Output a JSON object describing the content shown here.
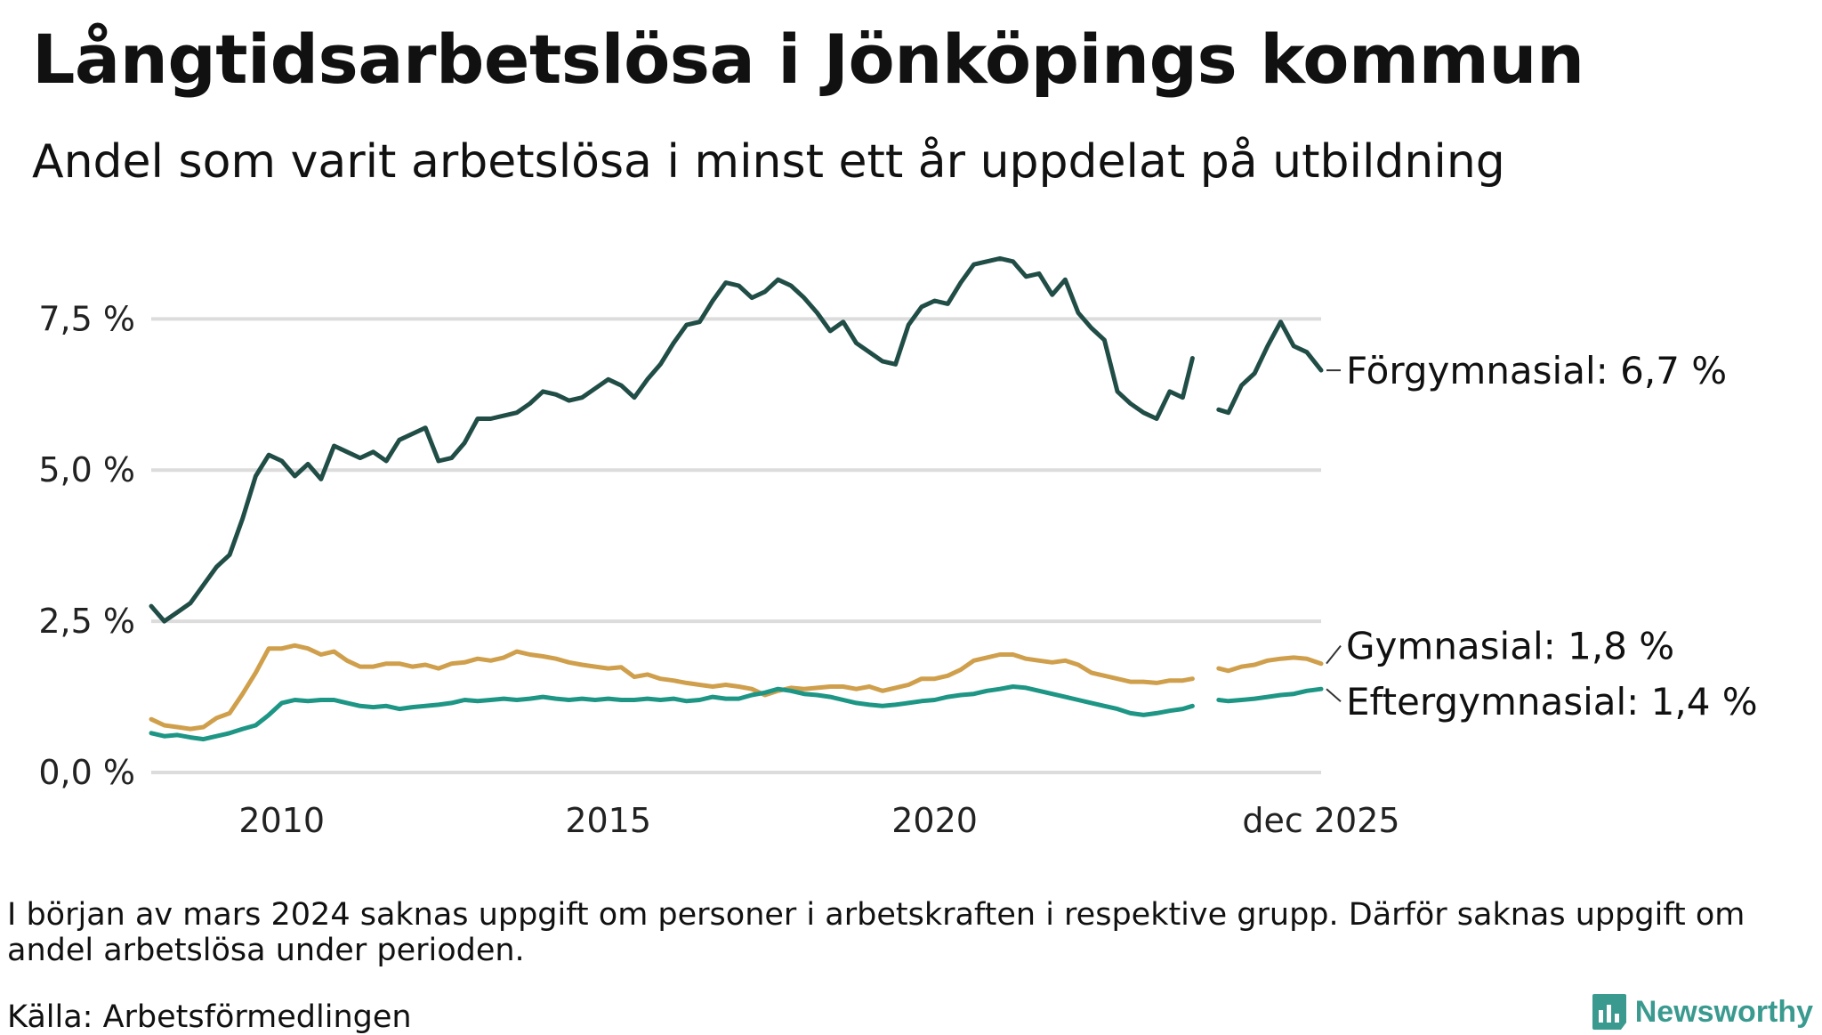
{
  "title": "Långtidsarbetslösa i Jönköpings kommun",
  "subtitle": "Andel som varit arbetslösa i minst ett år uppdelat på utbildning",
  "footer": {
    "note": "I början av mars 2024 saknas uppgift om personer i arbetskraften i respektive grupp. Därför saknas uppgift om andel arbetslösa under perioden.",
    "source": "Källa: Arbetsförmedlingen",
    "brand": "Newsworthy"
  },
  "chart_data": {
    "type": "line",
    "title": "Långtidsarbetslösa i Jönköpings kommun",
    "subtitle": "Andel som varit arbetslösa i minst ett år uppdelat på utbildning",
    "xlabel": "",
    "ylabel": "",
    "xlim": [
      2008.0,
      2025.92
    ],
    "ylim": [
      0,
      8.8
    ],
    "grid": true,
    "legend": "direct labels at line ends (right)",
    "x_ticks": [
      {
        "value": 2010,
        "label": "2010"
      },
      {
        "value": 2015,
        "label": "2015"
      },
      {
        "value": 2020,
        "label": "2020"
      },
      {
        "value": 2025.92,
        "label": "dec 2025"
      }
    ],
    "y_ticks": [
      {
        "value": 0,
        "label": "0,0 %"
      },
      {
        "value": 2.5,
        "label": "2,5 %"
      },
      {
        "value": 5.0,
        "label": "5,0 %"
      },
      {
        "value": 7.5,
        "label": "7,5 %"
      }
    ],
    "gap": {
      "from": 2023.95,
      "to": 2024.35,
      "note": "saknas uppgift"
    },
    "series": [
      {
        "name": "Förgymnasial",
        "end_label": "Förgymnasial: 6,7 %",
        "color": "#214d47",
        "x": [
          2008.0,
          2008.2,
          2008.4,
          2008.6,
          2008.8,
          2009.0,
          2009.2,
          2009.4,
          2009.6,
          2009.8,
          2010.0,
          2010.2,
          2010.4,
          2010.6,
          2010.8,
          2011.0,
          2011.2,
          2011.4,
          2011.6,
          2011.8,
          2012.0,
          2012.2,
          2012.4,
          2012.6,
          2012.8,
          2013.0,
          2013.2,
          2013.4,
          2013.6,
          2013.8,
          2014.0,
          2014.2,
          2014.4,
          2014.6,
          2014.8,
          2015.0,
          2015.2,
          2015.4,
          2015.6,
          2015.8,
          2016.0,
          2016.2,
          2016.4,
          2016.6,
          2016.8,
          2017.0,
          2017.2,
          2017.4,
          2017.6,
          2017.8,
          2018.0,
          2018.2,
          2018.4,
          2018.6,
          2018.8,
          2019.0,
          2019.2,
          2019.4,
          2019.6,
          2019.8,
          2020.0,
          2020.2,
          2020.4,
          2020.6,
          2020.8,
          2021.0,
          2021.2,
          2021.4,
          2021.6,
          2021.8,
          2022.0,
          2022.2,
          2022.4,
          2022.6,
          2022.8,
          2023.0,
          2023.2,
          2023.4,
          2023.6,
          2023.8,
          2023.95,
          null,
          2024.35,
          2024.5,
          2024.7,
          2024.9,
          2025.1,
          2025.3,
          2025.5,
          2025.7,
          2025.92
        ],
        "y": [
          2.75,
          2.5,
          2.65,
          2.8,
          3.1,
          3.4,
          3.6,
          4.2,
          4.9,
          5.25,
          5.15,
          4.9,
          5.1,
          4.85,
          5.4,
          5.3,
          5.2,
          5.3,
          5.15,
          5.5,
          5.6,
          5.7,
          5.15,
          5.2,
          5.45,
          5.85,
          5.85,
          5.9,
          5.95,
          6.1,
          6.3,
          6.25,
          6.15,
          6.2,
          6.35,
          6.5,
          6.4,
          6.2,
          6.5,
          6.75,
          7.1,
          7.4,
          7.45,
          7.8,
          8.1,
          8.05,
          7.85,
          7.95,
          8.15,
          8.05,
          7.85,
          7.6,
          7.3,
          7.45,
          7.1,
          6.95,
          6.8,
          6.75,
          7.4,
          7.7,
          7.8,
          7.75,
          8.1,
          8.4,
          8.45,
          8.5,
          8.45,
          8.2,
          8.25,
          7.9,
          8.15,
          7.6,
          7.35,
          7.15,
          6.3,
          6.1,
          5.95,
          5.85,
          6.3,
          6.2,
          6.85,
          null,
          6.0,
          5.95,
          6.4,
          6.6,
          7.05,
          7.45,
          7.05,
          6.95,
          6.65
        ]
      },
      {
        "name": "Gymnasial",
        "end_label": "Gymnasial: 1,8 %",
        "color": "#cf9f4c",
        "x": [
          2008.0,
          2008.2,
          2008.4,
          2008.6,
          2008.8,
          2009.0,
          2009.2,
          2009.4,
          2009.6,
          2009.8,
          2010.0,
          2010.2,
          2010.4,
          2010.6,
          2010.8,
          2011.0,
          2011.2,
          2011.4,
          2011.6,
          2011.8,
          2012.0,
          2012.2,
          2012.4,
          2012.6,
          2012.8,
          2013.0,
          2013.2,
          2013.4,
          2013.6,
          2013.8,
          2014.0,
          2014.2,
          2014.4,
          2014.6,
          2014.8,
          2015.0,
          2015.2,
          2015.4,
          2015.6,
          2015.8,
          2016.0,
          2016.2,
          2016.4,
          2016.6,
          2016.8,
          2017.0,
          2017.2,
          2017.4,
          2017.6,
          2017.8,
          2018.0,
          2018.2,
          2018.4,
          2018.6,
          2018.8,
          2019.0,
          2019.2,
          2019.4,
          2019.6,
          2019.8,
          2020.0,
          2020.2,
          2020.4,
          2020.6,
          2020.8,
          2021.0,
          2021.2,
          2021.4,
          2021.6,
          2021.8,
          2022.0,
          2022.2,
          2022.4,
          2022.6,
          2022.8,
          2023.0,
          2023.2,
          2023.4,
          2023.6,
          2023.8,
          2023.95,
          null,
          2024.35,
          2024.5,
          2024.7,
          2024.9,
          2025.1,
          2025.3,
          2025.5,
          2025.7,
          2025.92
        ],
        "y": [
          0.88,
          0.78,
          0.75,
          0.72,
          0.75,
          0.9,
          0.98,
          1.3,
          1.65,
          2.05,
          2.05,
          2.1,
          2.05,
          1.95,
          2.0,
          1.85,
          1.75,
          1.75,
          1.8,
          1.8,
          1.75,
          1.78,
          1.72,
          1.8,
          1.82,
          1.88,
          1.85,
          1.9,
          2.0,
          1.95,
          1.92,
          1.88,
          1.82,
          1.78,
          1.75,
          1.72,
          1.74,
          1.58,
          1.62,
          1.55,
          1.52,
          1.48,
          1.45,
          1.42,
          1.45,
          1.42,
          1.38,
          1.28,
          1.35,
          1.4,
          1.38,
          1.4,
          1.42,
          1.42,
          1.38,
          1.42,
          1.35,
          1.4,
          1.45,
          1.55,
          1.55,
          1.6,
          1.7,
          1.85,
          1.9,
          1.95,
          1.95,
          1.88,
          1.85,
          1.82,
          1.85,
          1.78,
          1.65,
          1.6,
          1.55,
          1.5,
          1.5,
          1.48,
          1.52,
          1.52,
          1.55,
          null,
          1.72,
          1.68,
          1.75,
          1.78,
          1.85,
          1.88,
          1.9,
          1.88,
          1.8
        ]
      },
      {
        "name": "Eftergymnasial",
        "end_label": "Eftergymnasial: 1,4 %",
        "color": "#1e9685",
        "x": [
          2008.0,
          2008.2,
          2008.4,
          2008.6,
          2008.8,
          2009.0,
          2009.2,
          2009.4,
          2009.6,
          2009.8,
          2010.0,
          2010.2,
          2010.4,
          2010.6,
          2010.8,
          2011.0,
          2011.2,
          2011.4,
          2011.6,
          2011.8,
          2012.0,
          2012.2,
          2012.4,
          2012.6,
          2012.8,
          2013.0,
          2013.2,
          2013.4,
          2013.6,
          2013.8,
          2014.0,
          2014.2,
          2014.4,
          2014.6,
          2014.8,
          2015.0,
          2015.2,
          2015.4,
          2015.6,
          2015.8,
          2016.0,
          2016.2,
          2016.4,
          2016.6,
          2016.8,
          2017.0,
          2017.2,
          2017.4,
          2017.6,
          2017.8,
          2018.0,
          2018.2,
          2018.4,
          2018.6,
          2018.8,
          2019.0,
          2019.2,
          2019.4,
          2019.6,
          2019.8,
          2020.0,
          2020.2,
          2020.4,
          2020.6,
          2020.8,
          2021.0,
          2021.2,
          2021.4,
          2021.6,
          2021.8,
          2022.0,
          2022.2,
          2022.4,
          2022.6,
          2022.8,
          2023.0,
          2023.2,
          2023.4,
          2023.6,
          2023.8,
          2023.95,
          null,
          2024.35,
          2024.5,
          2024.7,
          2024.9,
          2025.1,
          2025.3,
          2025.5,
          2025.7,
          2025.92
        ],
        "y": [
          0.65,
          0.6,
          0.62,
          0.58,
          0.55,
          0.6,
          0.65,
          0.72,
          0.78,
          0.95,
          1.15,
          1.2,
          1.18,
          1.2,
          1.2,
          1.15,
          1.1,
          1.08,
          1.1,
          1.05,
          1.08,
          1.1,
          1.12,
          1.15,
          1.2,
          1.18,
          1.2,
          1.22,
          1.2,
          1.22,
          1.25,
          1.22,
          1.2,
          1.22,
          1.2,
          1.22,
          1.2,
          1.2,
          1.22,
          1.2,
          1.22,
          1.18,
          1.2,
          1.25,
          1.22,
          1.22,
          1.28,
          1.32,
          1.38,
          1.35,
          1.3,
          1.28,
          1.25,
          1.2,
          1.15,
          1.12,
          1.1,
          1.12,
          1.15,
          1.18,
          1.2,
          1.25,
          1.28,
          1.3,
          1.35,
          1.38,
          1.42,
          1.4,
          1.35,
          1.3,
          1.25,
          1.2,
          1.15,
          1.1,
          1.05,
          0.98,
          0.95,
          0.98,
          1.02,
          1.05,
          1.1,
          null,
          1.2,
          1.18,
          1.2,
          1.22,
          1.25,
          1.28,
          1.3,
          1.35,
          1.38
        ]
      }
    ]
  }
}
